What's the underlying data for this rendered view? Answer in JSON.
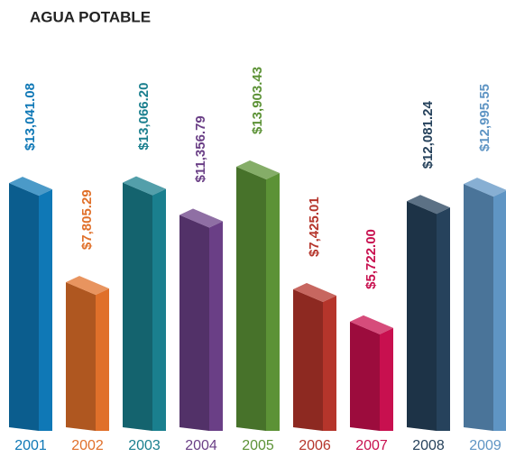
{
  "chart_data": {
    "type": "bar3d",
    "title": "AGUA POTABLE",
    "categories": [
      "2001",
      "2002",
      "2003",
      "2004",
      "2005",
      "2006",
      "2007",
      "2008",
      "2009"
    ],
    "values": [
      13041.08,
      7805.29,
      13066.2,
      11356.79,
      13903.43,
      7425.01,
      5722.0,
      12081.24,
      12995.55
    ],
    "value_labels": [
      "$13,041.08",
      "$7,805.29",
      "$13,066.20",
      "$11,356.79",
      "$13,903.43",
      "$7,425.01",
      "$5,722.00",
      "$12,081.24",
      "$12,995.55"
    ],
    "colors": [
      "#0f78b6",
      "#e0702a",
      "#1a7f8e",
      "#6a3f86",
      "#5c9236",
      "#b5352b",
      "#c8104f",
      "#26425c",
      "#5f95c4"
    ]
  }
}
